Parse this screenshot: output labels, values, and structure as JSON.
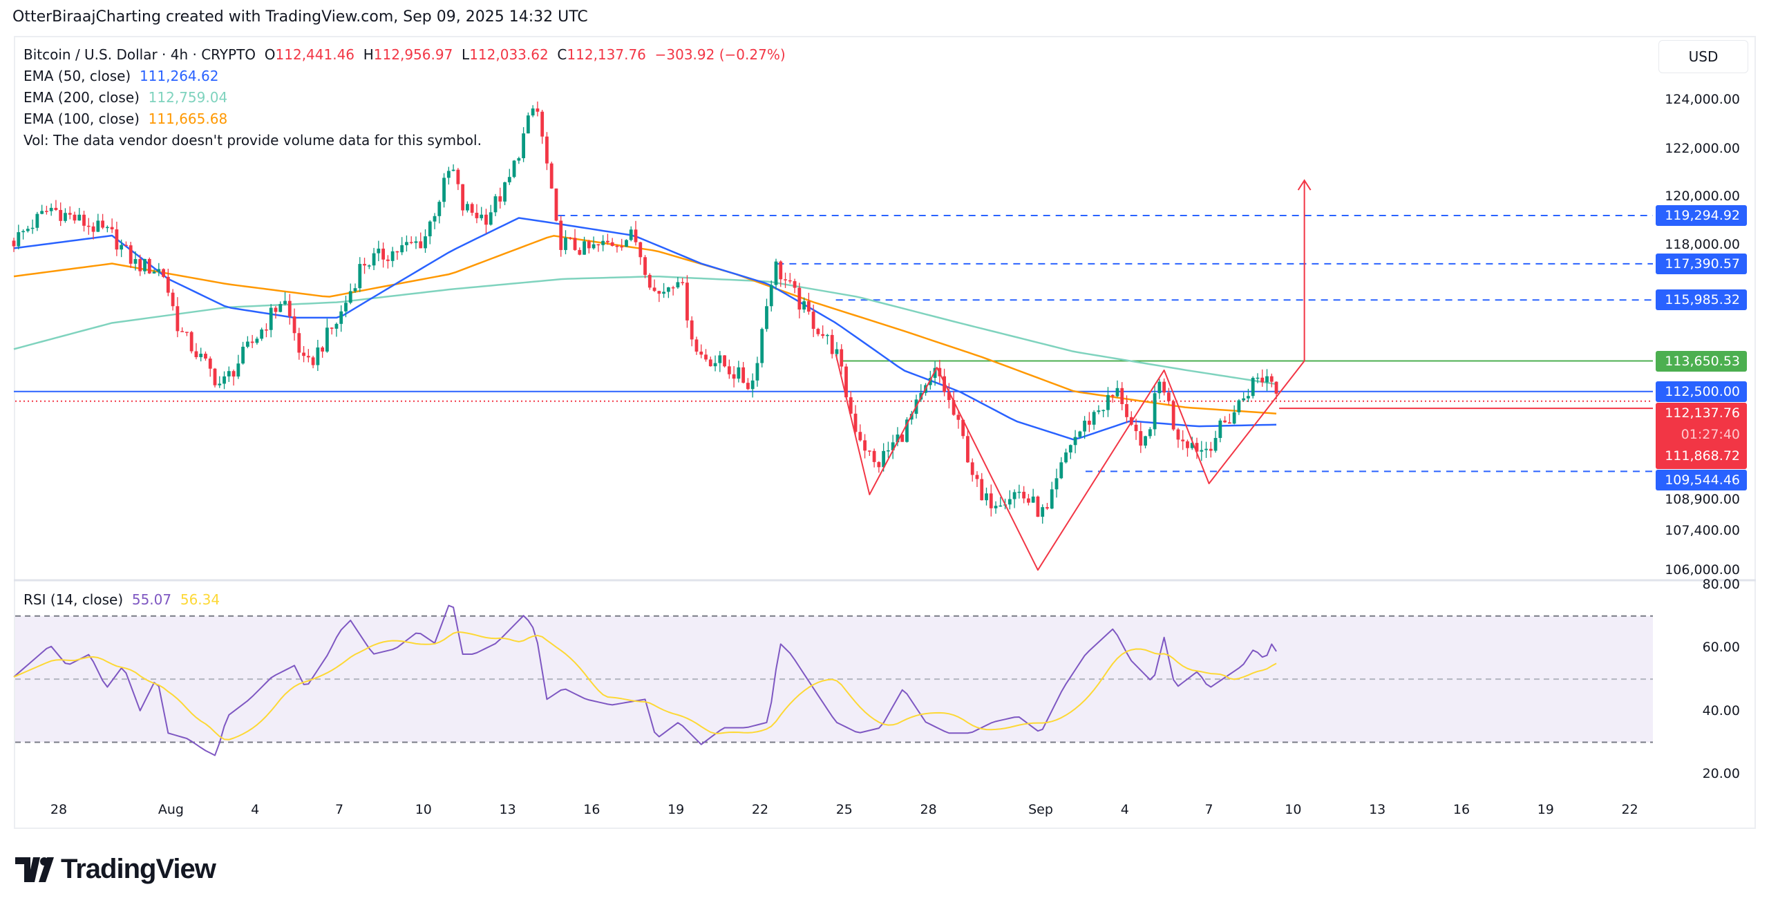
{
  "header": {
    "text": "OtterBiraajCharting created with TradingView.com, Sep 09, 2025 14:32 UTC"
  },
  "legend": {
    "symbol": "Bitcoin / U.S. Dollar · 4h · CRYPTO",
    "o_label": "O",
    "o": "112,441.46",
    "h_label": "H",
    "h": "112,956.97",
    "l_label": "L",
    "l": "112,033.62",
    "c_label": "C",
    "c": "112,137.76",
    "change": "−303.92 (−0.27%)",
    "ema50_label": "EMA (50, close)",
    "ema50": "111,264.62",
    "ema200_label": "EMA (200, close)",
    "ema200": "112,759.04",
    "ema100_label": "EMA (100, close)",
    "ema100": "111,665.68",
    "vol": "Vol: The data vendor doesn't provide volume data for this symbol.",
    "rsi_label": "RSI (14, close)",
    "rsi": "55.07",
    "rsi_ma": "56.34"
  },
  "currency_button": "USD",
  "colors": {
    "up": "#089981",
    "down": "#f23645",
    "ema50": "#2962ff",
    "ema100": "#ff9800",
    "ema200": "#7fd3be",
    "rsi": "#7e57c2",
    "rsi_ma": "#fdd835",
    "pattern": "#f23645",
    "level": "#2962ff",
    "neckline": "#4caf50"
  },
  "chart_data": [
    {
      "type": "candlestick",
      "title": "Bitcoin / U.S. Dollar · 4h · CRYPTO",
      "x_unit": "days since Jul 28, 2025",
      "y_scale": "log",
      "ylim": [
        105500,
        125000
      ],
      "price_ticks": [
        "124,000.00",
        "122,000.00",
        "120,000.00",
        "118,000.00",
        "108,900.00",
        "107,400.00",
        "106,000.00"
      ],
      "price_tick_values": [
        124000,
        122000,
        120000,
        118000,
        108900,
        107400,
        106000
      ],
      "time_ticks": [
        {
          "label": "28",
          "day": 0
        },
        {
          "label": "Aug",
          "day": 4
        },
        {
          "label": "4",
          "day": 7
        },
        {
          "label": "7",
          "day": 10
        },
        {
          "label": "10",
          "day": 13
        },
        {
          "label": "13",
          "day": 16
        },
        {
          "label": "16",
          "day": 19
        },
        {
          "label": "19",
          "day": 22
        },
        {
          "label": "22",
          "day": 25
        },
        {
          "label": "25",
          "day": 28
        },
        {
          "label": "28",
          "day": 31
        },
        {
          "label": "Sep",
          "day": 35
        },
        {
          "label": "4",
          "day": 38
        },
        {
          "label": "7",
          "day": 41
        },
        {
          "label": "10",
          "day": 44
        },
        {
          "label": "13",
          "day": 47
        },
        {
          "label": "16",
          "day": 50
        },
        {
          "label": "19",
          "day": 53
        },
        {
          "label": "22",
          "day": 56
        }
      ],
      "price_path": [
        [
          -1.6,
          118300
        ],
        [
          -0.3,
          119600
        ],
        [
          1.9,
          118500
        ],
        [
          2.7,
          117400
        ],
        [
          3.7,
          117100
        ],
        [
          4.3,
          114800
        ],
        [
          5.8,
          112700
        ],
        [
          7.2,
          114800
        ],
        [
          8.0,
          116100
        ],
        [
          8.8,
          113300
        ],
        [
          10.0,
          115300
        ],
        [
          10.8,
          117400
        ],
        [
          12.0,
          117900
        ],
        [
          13.0,
          118300
        ],
        [
          14.0,
          121300
        ],
        [
          14.4,
          119600
        ],
        [
          15.2,
          119200
        ],
        [
          16.0,
          120500
        ],
        [
          16.6,
          122600
        ],
        [
          17.0,
          123900
        ],
        [
          17.4,
          121300
        ],
        [
          17.8,
          118300
        ],
        [
          18.8,
          117900
        ],
        [
          20.5,
          118500
        ],
        [
          21.3,
          116100
        ],
        [
          22.1,
          117000
        ],
        [
          22.7,
          114000
        ],
        [
          23.7,
          113500
        ],
        [
          24.7,
          112700
        ],
        [
          25.5,
          117400
        ],
        [
          26.5,
          115700
        ],
        [
          27.7,
          114000
        ],
        [
          28.3,
          111400
        ],
        [
          29.1,
          109700
        ],
        [
          30.1,
          111000
        ],
        [
          31.3,
          113300
        ],
        [
          32.3,
          110500
        ],
        [
          32.9,
          108400
        ],
        [
          34.2,
          108800
        ],
        [
          35.2,
          107900
        ],
        [
          36.0,
          110500
        ],
        [
          37.0,
          111800
        ],
        [
          37.8,
          112500
        ],
        [
          38.6,
          110100
        ],
        [
          39.3,
          113100
        ],
        [
          39.8,
          111000
        ],
        [
          40.8,
          110300
        ],
        [
          41.8,
          111600
        ],
        [
          42.6,
          112900
        ],
        [
          43.2,
          113100
        ],
        [
          43.5,
          112137.76
        ]
      ],
      "ema50": [
        [
          -1.6,
          118000
        ],
        [
          1.9,
          118500
        ],
        [
          3.9,
          116800
        ],
        [
          6.0,
          115700
        ],
        [
          8.4,
          115300
        ],
        [
          10.0,
          115300
        ],
        [
          12.0,
          116600
        ],
        [
          14.0,
          117900
        ],
        [
          16.4,
          119200
        ],
        [
          17.6,
          119000
        ],
        [
          20.5,
          118500
        ],
        [
          22.9,
          117400
        ],
        [
          25.3,
          116600
        ],
        [
          27.7,
          115100
        ],
        [
          30.1,
          113300
        ],
        [
          32.1,
          112500
        ],
        [
          34.1,
          111400
        ],
        [
          36.2,
          110700
        ],
        [
          38.2,
          111400
        ],
        [
          40.6,
          111200
        ],
        [
          43.5,
          111264.62
        ]
      ],
      "ema100": [
        [
          -1.6,
          116900
        ],
        [
          1.9,
          117400
        ],
        [
          6.0,
          116600
        ],
        [
          9.6,
          116100
        ],
        [
          14.0,
          117000
        ],
        [
          17.6,
          118500
        ],
        [
          21.3,
          117900
        ],
        [
          24.1,
          117000
        ],
        [
          26.9,
          115900
        ],
        [
          30.1,
          114800
        ],
        [
          32.9,
          113800
        ],
        [
          36.2,
          112500
        ],
        [
          40.2,
          111900
        ],
        [
          43.5,
          111665.68
        ]
      ],
      "ema200": [
        [
          -1.6,
          114100
        ],
        [
          1.9,
          115100
        ],
        [
          6.0,
          115700
        ],
        [
          10.0,
          115900
        ],
        [
          14.0,
          116400
        ],
        [
          18.0,
          116800
        ],
        [
          21.3,
          116900
        ],
        [
          25.3,
          116700
        ],
        [
          28.5,
          116100
        ],
        [
          32.1,
          115100
        ],
        [
          36.2,
          114000
        ],
        [
          40.2,
          113300
        ],
        [
          43.5,
          112759.04
        ]
      ],
      "levels": [
        {
          "label": "119,294.92",
          "value": 119294.92,
          "style": "dashed",
          "from_day": 17.8,
          "color": "#2962ff"
        },
        {
          "label": "117,390.57",
          "value": 117390.57,
          "style": "dashed",
          "from_day": 25.6,
          "color": "#2962ff"
        },
        {
          "label": "115,985.32",
          "value": 115985.32,
          "style": "dashed",
          "from_day": 27.7,
          "color": "#2962ff"
        },
        {
          "label": "113,650.53",
          "value": 113650.53,
          "style": "solid",
          "from_day": 27.9,
          "color": "#4caf50"
        },
        {
          "label": "112,500.00",
          "value": 112500,
          "style": "solid",
          "from_day": -1.6,
          "color": "#2962ff"
        },
        {
          "label": "109,544.46",
          "value": 109544.46,
          "style": "dashed",
          "from_day": 36.6,
          "color": "#2962ff"
        }
      ],
      "last_price": {
        "label": "112,137.76",
        "value": 112137.76,
        "countdown": "01:27:40",
        "prev_label": "111,868.72",
        "prev_value": 111868.72
      },
      "pattern": [
        [
          27.7,
          113900
        ],
        [
          28.9,
          108700
        ],
        [
          31.3,
          113400
        ],
        [
          34.9,
          106000
        ],
        [
          39.4,
          113300
        ],
        [
          41.0,
          109100
        ],
        [
          44.4,
          113650.53
        ]
      ],
      "target_arrow": {
        "day": 44.4,
        "from": 113650.53,
        "to": 120700
      }
    },
    {
      "type": "line",
      "title": "RSI (14, close)",
      "ylim": [
        14,
        83
      ],
      "ticks": [
        "80.00",
        "60.00",
        "40.00",
        "20.00"
      ],
      "tick_values": [
        80,
        60,
        40,
        20
      ],
      "bands": [
        70,
        50,
        30
      ],
      "rsi": [
        [
          -1.6,
          50.7
        ],
        [
          -0.3,
          60.7
        ],
        [
          0.3,
          54.3
        ],
        [
          1.1,
          57.9
        ],
        [
          1.7,
          47.1
        ],
        [
          2.3,
          54.3
        ],
        [
          2.9,
          40
        ],
        [
          3.5,
          50.7
        ],
        [
          3.9,
          32.9
        ],
        [
          4.6,
          31.1
        ],
        [
          5.2,
          27.5
        ],
        [
          5.6,
          25.7
        ],
        [
          6.0,
          38.2
        ],
        [
          6.8,
          43.6
        ],
        [
          7.6,
          50.7
        ],
        [
          8.4,
          54.3
        ],
        [
          8.8,
          47.1
        ],
        [
          9.6,
          57.9
        ],
        [
          10.0,
          65
        ],
        [
          10.4,
          68.6
        ],
        [
          11.2,
          57.9
        ],
        [
          12.0,
          59.6
        ],
        [
          12.8,
          65
        ],
        [
          13.4,
          61.4
        ],
        [
          14.0,
          75.7
        ],
        [
          14.4,
          57.9
        ],
        [
          14.8,
          57.9
        ],
        [
          15.6,
          61.4
        ],
        [
          16.6,
          70.4
        ],
        [
          17.0,
          65
        ],
        [
          17.4,
          43.6
        ],
        [
          18.0,
          47.1
        ],
        [
          18.8,
          43.6
        ],
        [
          19.7,
          41.8
        ],
        [
          20.9,
          43.6
        ],
        [
          21.3,
          31.1
        ],
        [
          22.1,
          36.4
        ],
        [
          22.9,
          29.3
        ],
        [
          23.7,
          34.6
        ],
        [
          24.5,
          34.6
        ],
        [
          25.3,
          36.4
        ],
        [
          25.7,
          61.4
        ],
        [
          26.1,
          57.9
        ],
        [
          26.9,
          47.1
        ],
        [
          27.7,
          36.4
        ],
        [
          28.5,
          32.9
        ],
        [
          29.3,
          34.6
        ],
        [
          30.1,
          47.1
        ],
        [
          30.9,
          36.4
        ],
        [
          31.7,
          32.9
        ],
        [
          32.5,
          32.9
        ],
        [
          33.3,
          36.4
        ],
        [
          34.2,
          38.2
        ],
        [
          35.0,
          32.9
        ],
        [
          35.8,
          47.1
        ],
        [
          36.6,
          57.9
        ],
        [
          37.6,
          66.1
        ],
        [
          38.2,
          56.1
        ],
        [
          39.0,
          48.9
        ],
        [
          39.4,
          63.2
        ],
        [
          39.8,
          47.1
        ],
        [
          40.6,
          52.5
        ],
        [
          41.0,
          47.1
        ],
        [
          41.6,
          50.7
        ],
        [
          42.2,
          54.3
        ],
        [
          42.6,
          59.6
        ],
        [
          43.0,
          56.1
        ],
        [
          43.3,
          62.5
        ],
        [
          43.5,
          55.07
        ]
      ]
    }
  ],
  "branding": {
    "logo_text": "TradingView"
  }
}
